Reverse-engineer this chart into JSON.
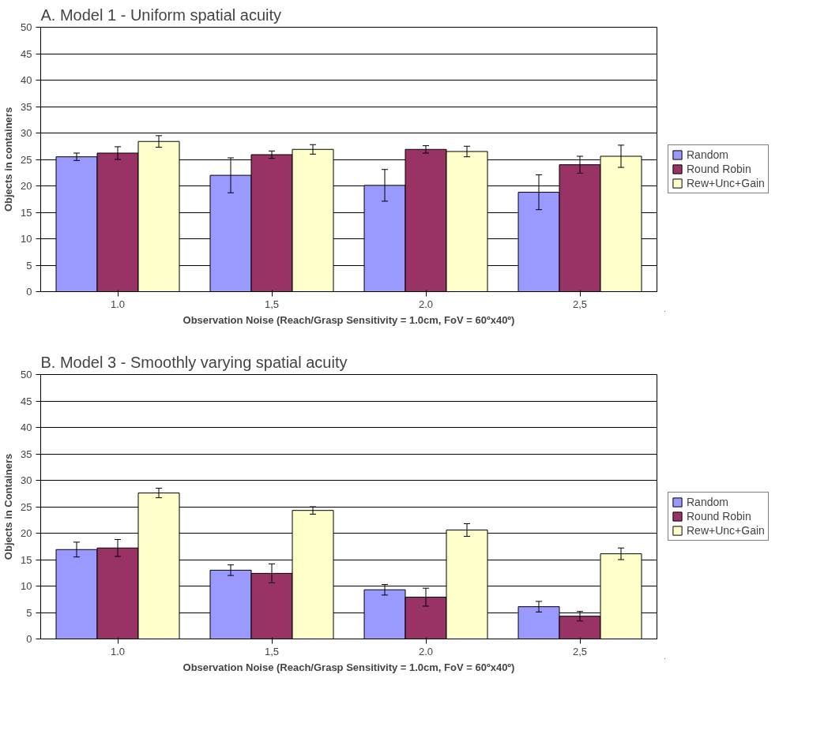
{
  "chart_data": [
    {
      "type": "bar",
      "title": "A. Model 1 - Uniform spatial acuity",
      "xlabel": "Observation Noise (Reach/Grasp Sensitivity = 1.0cm, FoV = 60ºx40º)",
      "ylabel": "Objects in containers",
      "categories": [
        "1.0",
        "1,5",
        "2.0",
        "2,5"
      ],
      "ylim": [
        0,
        50
      ],
      "yticks": [
        0,
        5,
        10,
        15,
        20,
        25,
        30,
        35,
        40,
        45,
        50
      ],
      "grid": "y",
      "legend": "right",
      "series": [
        {
          "name": "Random",
          "color": "#9999ff",
          "values": [
            25.5,
            22.0,
            20.1,
            18.8
          ],
          "errors": [
            0.7,
            3.3,
            3.0,
            3.3
          ]
        },
        {
          "name": "Round Robin",
          "color": "#993366",
          "values": [
            26.2,
            25.9,
            26.9,
            24.0
          ],
          "errors": [
            1.2,
            0.7,
            0.7,
            1.6
          ]
        },
        {
          "name": "Rew+Unc+Gain",
          "color": "#ffffcc",
          "values": [
            28.4,
            26.9,
            26.5,
            25.6
          ],
          "errors": [
            1.1,
            0.9,
            1.0,
            2.1
          ]
        }
      ]
    },
    {
      "type": "bar",
      "title": "B. Model 3 - Smoothly varying spatial acuity",
      "xlabel": "Observation Noise (Reach/Grasp Sensitivity = 1.0cm, FoV = 60ºx40º)",
      "ylabel": "Objects in Containers",
      "categories": [
        "1.0",
        "1,5",
        "2.0",
        "2,5"
      ],
      "ylim": [
        0,
        50
      ],
      "yticks": [
        0,
        5,
        10,
        15,
        20,
        25,
        30,
        35,
        40,
        45,
        50
      ],
      "grid": "y",
      "legend": "right",
      "series": [
        {
          "name": "Random",
          "color": "#9999ff",
          "values": [
            16.9,
            13.0,
            9.3,
            6.1
          ],
          "errors": [
            1.4,
            1.0,
            1.0,
            1.0
          ]
        },
        {
          "name": "Round Robin",
          "color": "#993366",
          "values": [
            17.2,
            12.4,
            7.9,
            4.3
          ],
          "errors": [
            1.6,
            1.8,
            1.7,
            0.9
          ]
        },
        {
          "name": "Rew+Unc+Gain",
          "color": "#ffffcc",
          "values": [
            27.6,
            24.3,
            20.6,
            16.1
          ],
          "errors": [
            0.9,
            0.7,
            1.2,
            1.1
          ]
        }
      ]
    }
  ]
}
